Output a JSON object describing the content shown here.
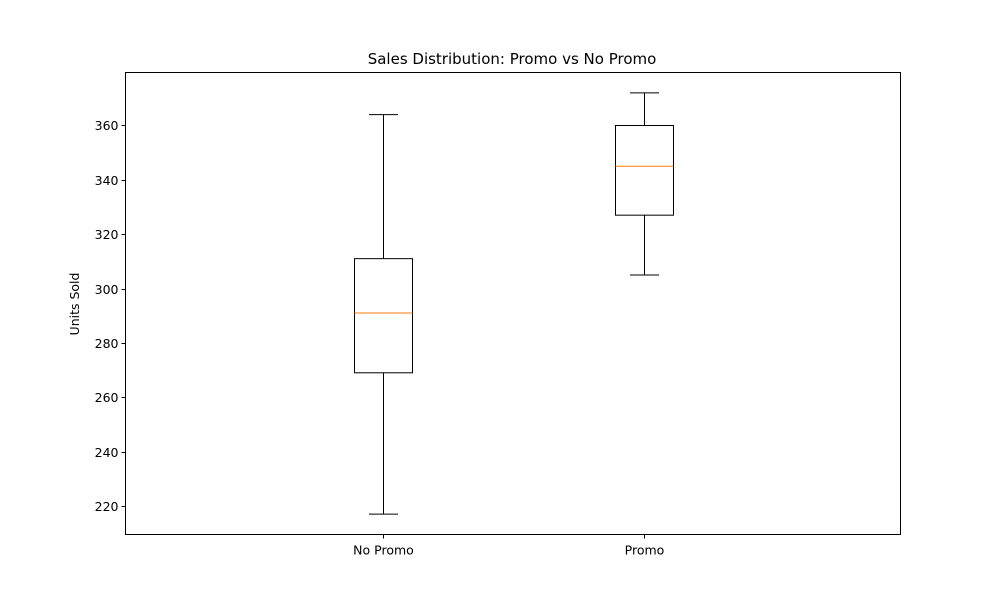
{
  "chart_data": {
    "type": "box",
    "title": "Sales Distribution: Promo vs No Promo",
    "xlabel": "",
    "ylabel": "Units Sold",
    "ylim": [
      209.5,
      379.5
    ],
    "yticks": [
      220,
      240,
      260,
      280,
      300,
      320,
      340,
      360
    ],
    "grid": false,
    "categories": [
      "No Promo",
      "Promo"
    ],
    "boxes": [
      {
        "name": "No Promo",
        "whisker_low": 217,
        "q1": 269,
        "median": 291,
        "q3": 311,
        "whisker_high": 364
      },
      {
        "name": "Promo",
        "whisker_low": 305,
        "q1": 327,
        "median": 345,
        "q3": 360,
        "whisker_high": 372
      }
    ],
    "colors": {
      "box": "#000000",
      "median": "#ff7f0e"
    }
  }
}
